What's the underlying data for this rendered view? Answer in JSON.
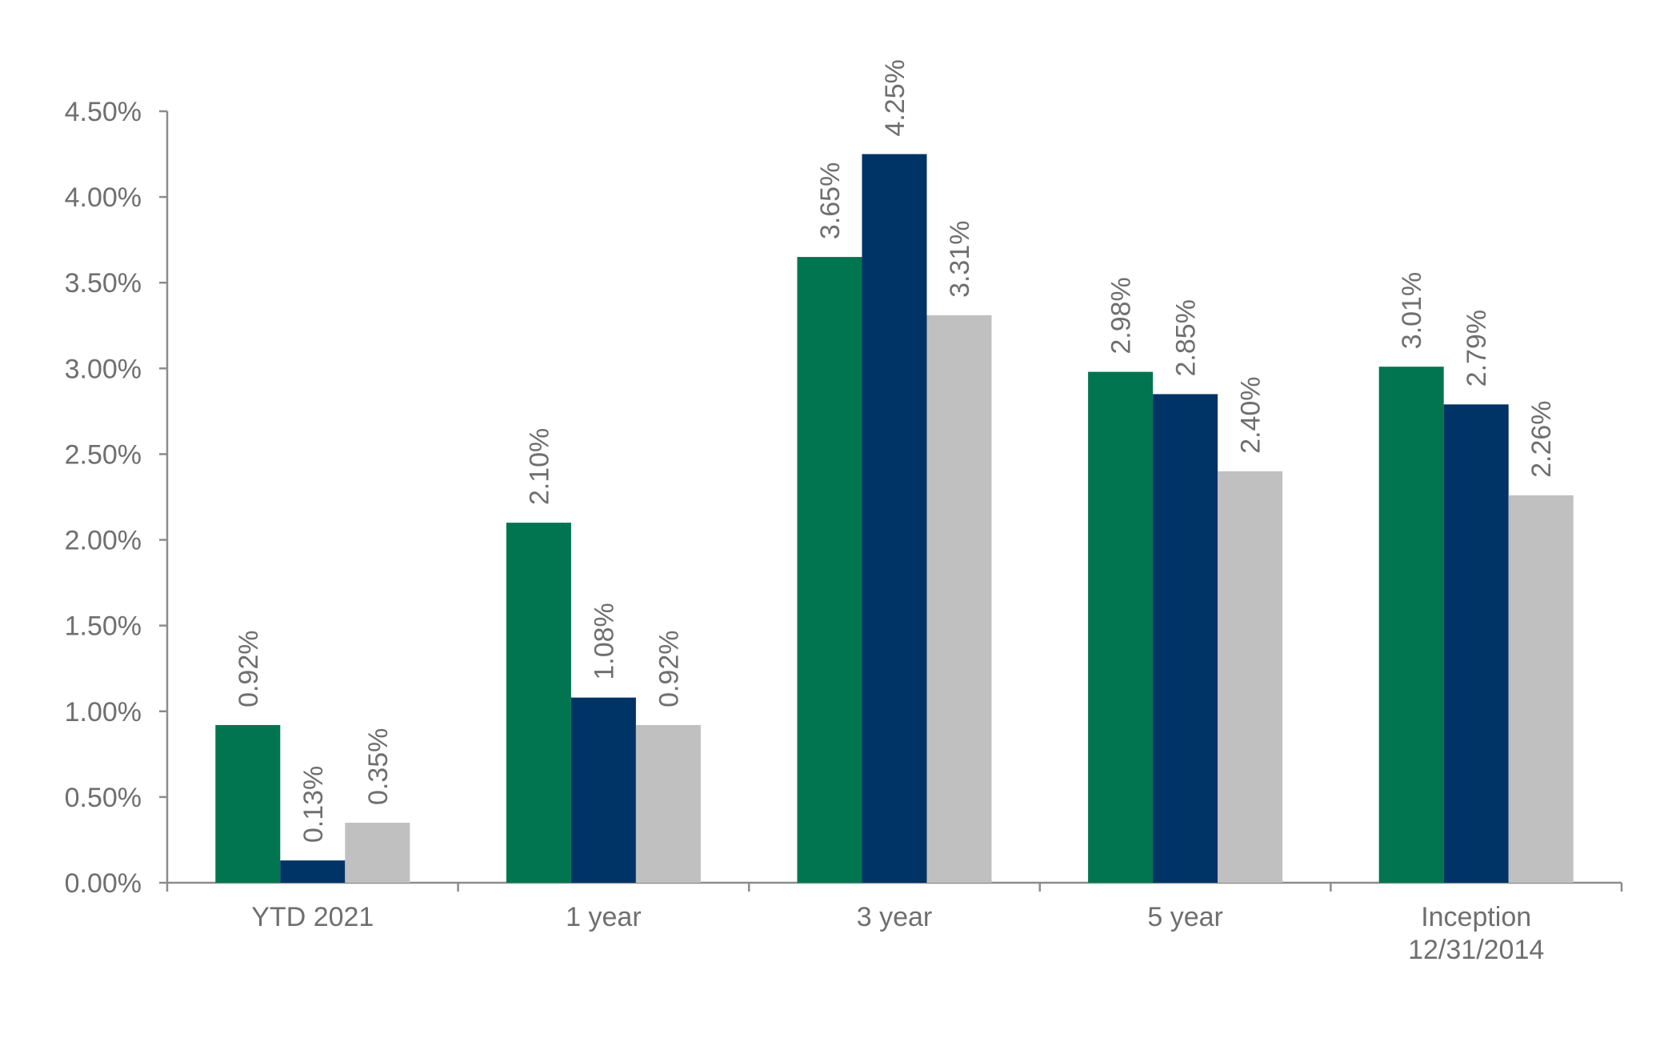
{
  "chart_data": {
    "type": "bar",
    "categories": [
      [
        "YTD 2021"
      ],
      [
        "1 year"
      ],
      [
        "3 year"
      ],
      [
        "5 year"
      ],
      [
        "Inception",
        "12/31/2014"
      ]
    ],
    "series": [
      {
        "color": "#00754f",
        "values": [
          0.92,
          2.1,
          3.65,
          2.98,
          3.01
        ],
        "labels": [
          "0.92%",
          "2.10%",
          "3.65%",
          "2.98%",
          "3.01%"
        ]
      },
      {
        "color": "#003366",
        "values": [
          0.13,
          1.08,
          4.25,
          2.85,
          2.79
        ],
        "labels": [
          "0.13%",
          "1.08%",
          "4.25%",
          "2.85%",
          "2.79%"
        ]
      },
      {
        "color": "#c0c0c0",
        "values": [
          0.35,
          0.92,
          3.31,
          2.4,
          2.26
        ],
        "labels": [
          "0.35%",
          "0.92%",
          "3.31%",
          "2.40%",
          "2.26%"
        ]
      }
    ],
    "y_ticks": [
      "0.00%",
      "0.50%",
      "1.00%",
      "1.50%",
      "2.00%",
      "2.50%",
      "3.00%",
      "3.50%",
      "4.00%",
      "4.50%"
    ],
    "ylim": [
      0,
      4.5
    ],
    "y_step": 0.5,
    "grid": false,
    "legend": "none",
    "title": "",
    "xlabel": "",
    "ylabel": ""
  }
}
